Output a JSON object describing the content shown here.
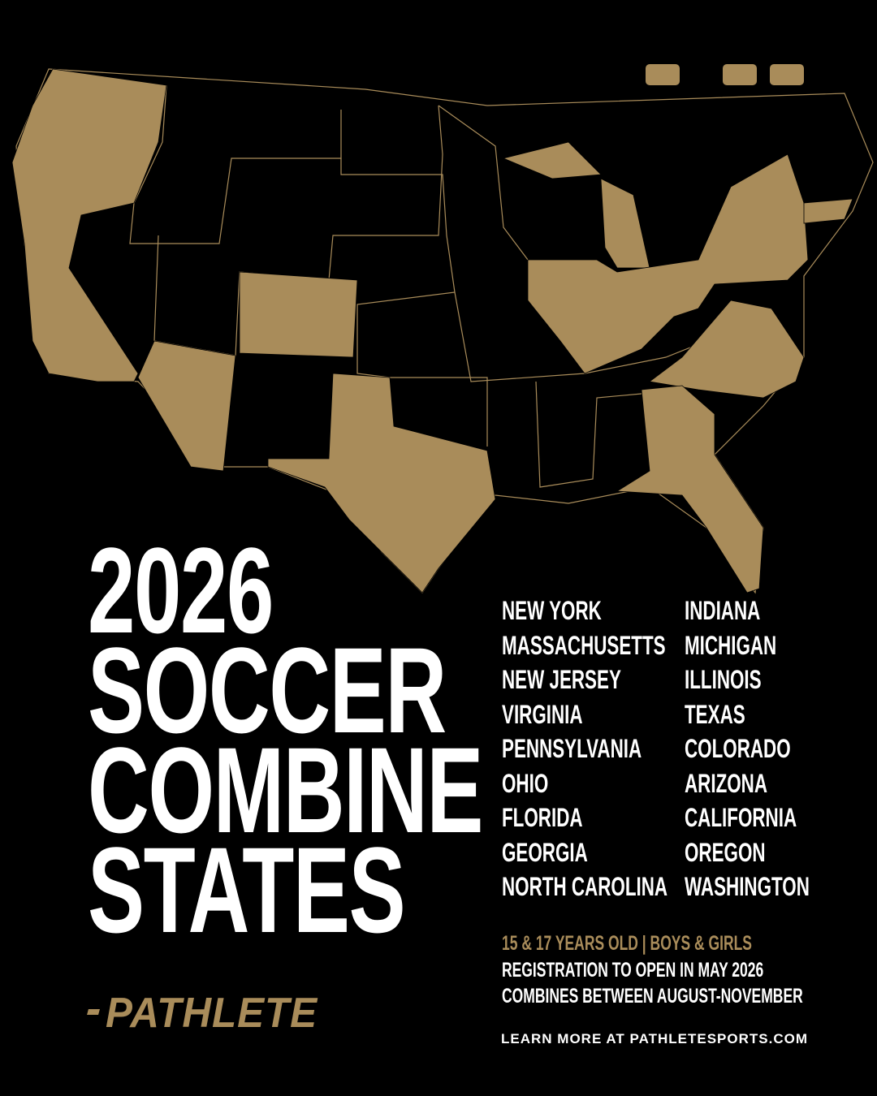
{
  "title_lines": [
    "2026",
    "SOCCER",
    "COMBINE",
    "STATES"
  ],
  "states": {
    "left": [
      "NEW YORK",
      "MASSACHUSETTS",
      "NEW JERSEY",
      "VIRGINIA",
      "PENNSYLVANIA",
      "OHIO",
      "FLORIDA",
      "GEORGIA",
      "NORTH CAROLINA"
    ],
    "right": [
      "INDIANA",
      "MICHIGAN",
      "ILLINOIS",
      "TEXAS",
      "COLORADO",
      "ARIZONA",
      "CALIFORNIA",
      "OREGON",
      "WASHINGTON"
    ]
  },
  "details": {
    "ages": "15 & 17 YEARS OLD | BOYS & GIRLS",
    "registration": "REGISTRATION TO OPEN IN MAY 2026",
    "combines": "COMBINES BETWEEN AUGUST-NOVEMBER"
  },
  "logo": "PATHLETE",
  "footer": "LEARN MORE AT PATHLETESPORTS.COM"
}
